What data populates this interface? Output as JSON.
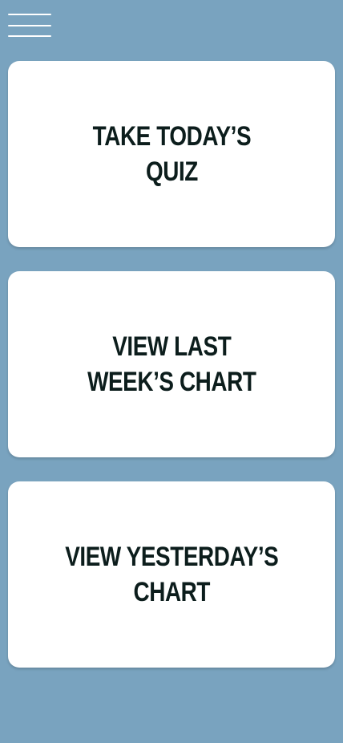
{
  "header": {
    "menu_icon": "hamburger-menu-icon"
  },
  "cards": [
    {
      "line1": "TAKE TODAY’S",
      "line2": "QUIZ"
    },
    {
      "line1": "VIEW LAST",
      "line2": "WEEK’S CHART"
    },
    {
      "line1": "VIEW YESTERDAY’S",
      "line2": "CHART"
    }
  ],
  "colors": {
    "background": "#79a3bf",
    "card": "#ffffff",
    "text": "#0c1d1c",
    "menu_icon": "#ffffff"
  }
}
